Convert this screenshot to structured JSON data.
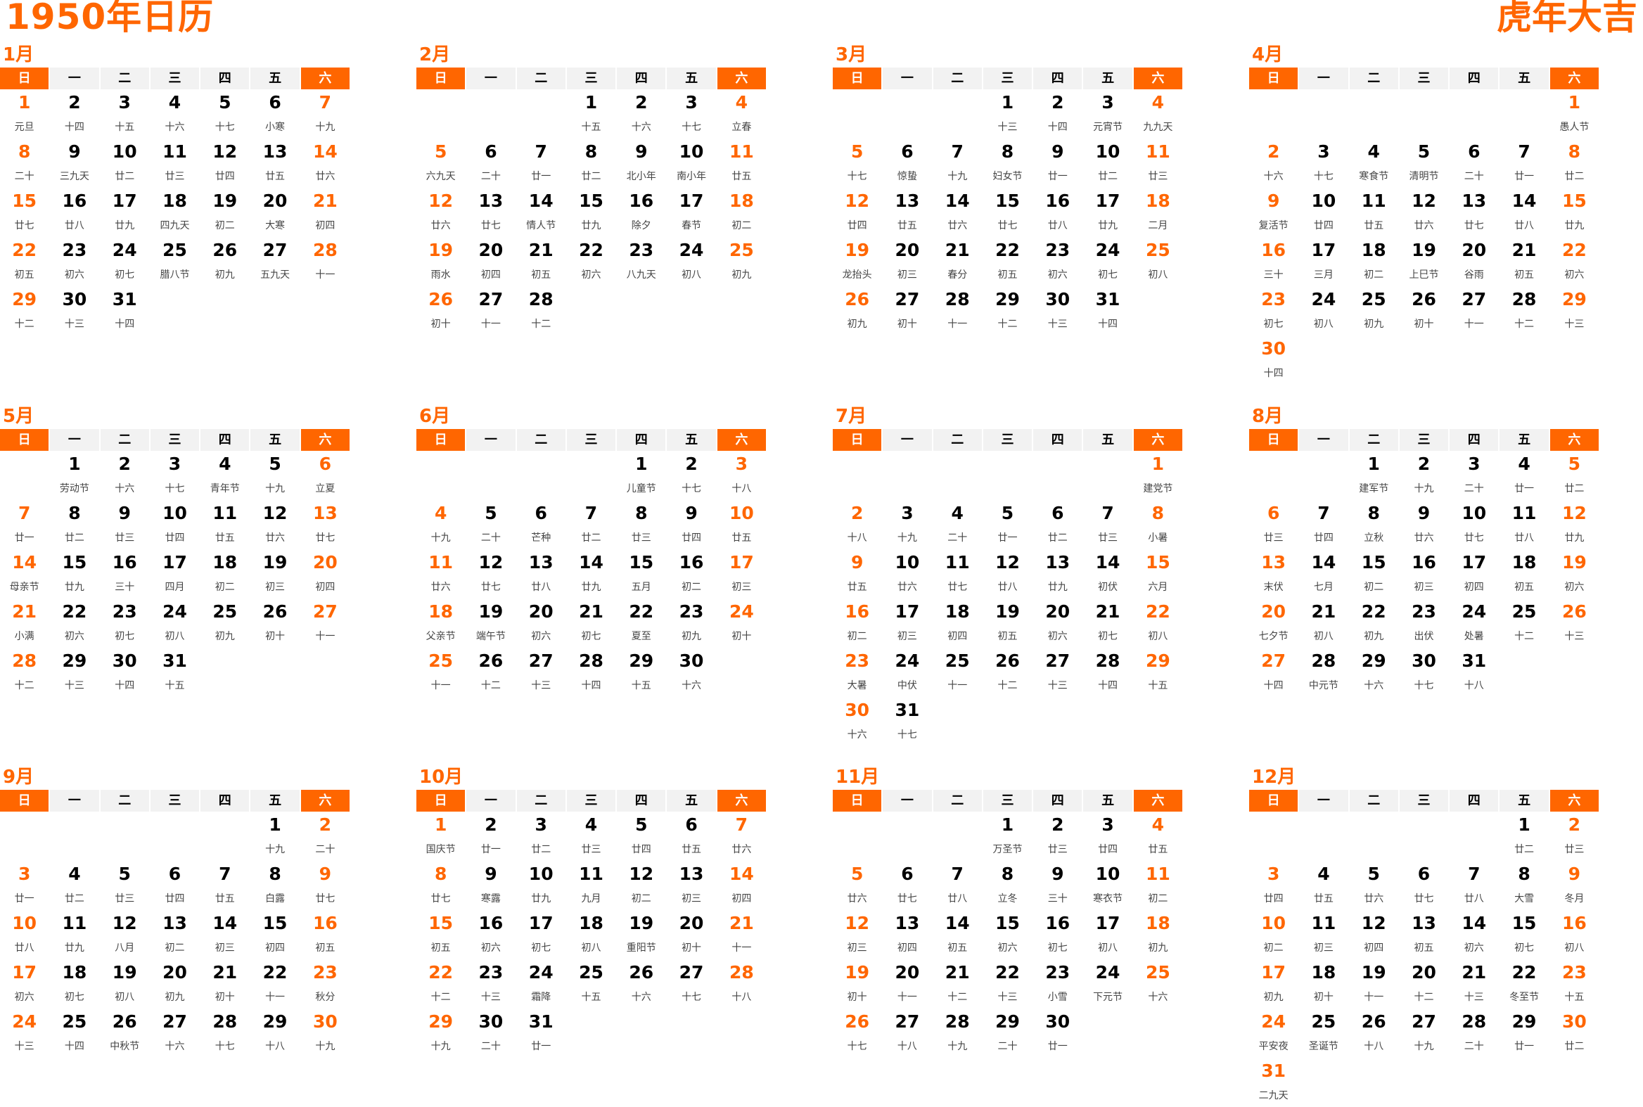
{
  "title": "1950年日历",
  "slogan": "虎年大吉",
  "colors": {
    "accent": "#FF6600",
    "header_bg": "#F2F2F2",
    "text": "#000000",
    "lunar_text": "#444444"
  },
  "weekdays": [
    "日",
    "一",
    "二",
    "三",
    "四",
    "五",
    "六"
  ],
  "months": [
    {
      "label": "1月",
      "days": [
        [
          "1",
          "元旦"
        ],
        [
          "2",
          "十四"
        ],
        [
          "3",
          "十五"
        ],
        [
          "4",
          "十六"
        ],
        [
          "5",
          "十七"
        ],
        [
          "6",
          "小寒"
        ],
        [
          "7",
          "十九"
        ],
        [
          "8",
          "二十"
        ],
        [
          "9",
          "三九天"
        ],
        [
          "10",
          "廿二"
        ],
        [
          "11",
          "廿三"
        ],
        [
          "12",
          "廿四"
        ],
        [
          "13",
          "廿五"
        ],
        [
          "14",
          "廿六"
        ],
        [
          "15",
          "廿七"
        ],
        [
          "16",
          "廿八"
        ],
        [
          "17",
          "廿九"
        ],
        [
          "18",
          "四九天"
        ],
        [
          "19",
          "初二"
        ],
        [
          "20",
          "大寒"
        ],
        [
          "21",
          "初四"
        ],
        [
          "22",
          "初五"
        ],
        [
          "23",
          "初六"
        ],
        [
          "24",
          "初七"
        ],
        [
          "25",
          "腊八节"
        ],
        [
          "26",
          "初九"
        ],
        [
          "27",
          "五九天"
        ],
        [
          "28",
          "十一"
        ],
        [
          "29",
          "十二"
        ],
        [
          "30",
          "十三"
        ],
        [
          "31",
          "十四"
        ]
      ]
    },
    {
      "label": "2月",
      "days": [
        [
          "1",
          "十五"
        ],
        [
          "2",
          "十六"
        ],
        [
          "3",
          "十七"
        ],
        [
          "4",
          "立春"
        ],
        [
          "5",
          "六九天"
        ],
        [
          "6",
          "二十"
        ],
        [
          "7",
          "廿一"
        ],
        [
          "8",
          "廿二"
        ],
        [
          "9",
          "北小年"
        ],
        [
          "10",
          "南小年"
        ],
        [
          "11",
          "廿五"
        ],
        [
          "12",
          "廿六"
        ],
        [
          "13",
          "廿七"
        ],
        [
          "14",
          "情人节"
        ],
        [
          "15",
          "廿九"
        ],
        [
          "16",
          "除夕"
        ],
        [
          "17",
          "春节"
        ],
        [
          "18",
          "初二"
        ],
        [
          "19",
          "雨水"
        ],
        [
          "20",
          "初四"
        ],
        [
          "21",
          "初五"
        ],
        [
          "22",
          "初六"
        ],
        [
          "23",
          "八九天"
        ],
        [
          "24",
          "初八"
        ],
        [
          "25",
          "初九"
        ],
        [
          "26",
          "初十"
        ],
        [
          "27",
          "十一"
        ],
        [
          "28",
          "十二"
        ]
      ]
    },
    {
      "label": "3月",
      "days": [
        [
          "1",
          "十三"
        ],
        [
          "2",
          "十四"
        ],
        [
          "3",
          "元宵节"
        ],
        [
          "4",
          "九九天"
        ],
        [
          "5",
          "十七"
        ],
        [
          "6",
          "惊蛰"
        ],
        [
          "7",
          "十九"
        ],
        [
          "8",
          "妇女节"
        ],
        [
          "9",
          "廿一"
        ],
        [
          "10",
          "廿二"
        ],
        [
          "11",
          "廿三"
        ],
        [
          "12",
          "廿四"
        ],
        [
          "13",
          "廿五"
        ],
        [
          "14",
          "廿六"
        ],
        [
          "15",
          "廿七"
        ],
        [
          "16",
          "廿八"
        ],
        [
          "17",
          "廿九"
        ],
        [
          "18",
          "二月"
        ],
        [
          "19",
          "龙抬头"
        ],
        [
          "20",
          "初三"
        ],
        [
          "21",
          "春分"
        ],
        [
          "22",
          "初五"
        ],
        [
          "23",
          "初六"
        ],
        [
          "24",
          "初七"
        ],
        [
          "25",
          "初八"
        ],
        [
          "26",
          "初九"
        ],
        [
          "27",
          "初十"
        ],
        [
          "28",
          "十一"
        ],
        [
          "29",
          "十二"
        ],
        [
          "30",
          "十三"
        ],
        [
          "31",
          "十四"
        ]
      ]
    },
    {
      "label": "4月",
      "days": [
        [
          "1",
          "愚人节"
        ],
        [
          "2",
          "十六"
        ],
        [
          "3",
          "十七"
        ],
        [
          "4",
          "寒食节"
        ],
        [
          "5",
          "清明节"
        ],
        [
          "6",
          "二十"
        ],
        [
          "7",
          "廿一"
        ],
        [
          "8",
          "廿二"
        ],
        [
          "9",
          "复活节"
        ],
        [
          "10",
          "廿四"
        ],
        [
          "11",
          "廿五"
        ],
        [
          "12",
          "廿六"
        ],
        [
          "13",
          "廿七"
        ],
        [
          "14",
          "廿八"
        ],
        [
          "15",
          "廿九"
        ],
        [
          "16",
          "三十"
        ],
        [
          "17",
          "三月"
        ],
        [
          "18",
          "初二"
        ],
        [
          "19",
          "上巳节"
        ],
        [
          "20",
          "谷雨"
        ],
        [
          "21",
          "初五"
        ],
        [
          "22",
          "初六"
        ],
        [
          "23",
          "初七"
        ],
        [
          "24",
          "初八"
        ],
        [
          "25",
          "初九"
        ],
        [
          "26",
          "初十"
        ],
        [
          "27",
          "十一"
        ],
        [
          "28",
          "十二"
        ],
        [
          "29",
          "十三"
        ],
        [
          "30",
          "十四"
        ]
      ]
    },
    {
      "label": "5月",
      "days": [
        [
          "1",
          "劳动节"
        ],
        [
          "2",
          "十六"
        ],
        [
          "3",
          "十七"
        ],
        [
          "4",
          "青年节"
        ],
        [
          "5",
          "十九"
        ],
        [
          "6",
          "立夏"
        ],
        [
          "7",
          "廿一"
        ],
        [
          "8",
          "廿二"
        ],
        [
          "9",
          "廿三"
        ],
        [
          "10",
          "廿四"
        ],
        [
          "11",
          "廿五"
        ],
        [
          "12",
          "廿六"
        ],
        [
          "13",
          "廿七"
        ],
        [
          "14",
          "母亲节"
        ],
        [
          "15",
          "廿九"
        ],
        [
          "16",
          "三十"
        ],
        [
          "17",
          "四月"
        ],
        [
          "18",
          "初二"
        ],
        [
          "19",
          "初三"
        ],
        [
          "20",
          "初四"
        ],
        [
          "21",
          "小满"
        ],
        [
          "22",
          "初六"
        ],
        [
          "23",
          "初七"
        ],
        [
          "24",
          "初八"
        ],
        [
          "25",
          "初九"
        ],
        [
          "26",
          "初十"
        ],
        [
          "27",
          "十一"
        ],
        [
          "28",
          "十二"
        ],
        [
          "29",
          "十三"
        ],
        [
          "30",
          "十四"
        ],
        [
          "31",
          "十五"
        ]
      ]
    },
    {
      "label": "6月",
      "days": [
        [
          "1",
          "儿童节"
        ],
        [
          "2",
          "十七"
        ],
        [
          "3",
          "十八"
        ],
        [
          "4",
          "十九"
        ],
        [
          "5",
          "二十"
        ],
        [
          "6",
          "芒种"
        ],
        [
          "7",
          "廿二"
        ],
        [
          "8",
          "廿三"
        ],
        [
          "9",
          "廿四"
        ],
        [
          "10",
          "廿五"
        ],
        [
          "11",
          "廿六"
        ],
        [
          "12",
          "廿七"
        ],
        [
          "13",
          "廿八"
        ],
        [
          "14",
          "廿九"
        ],
        [
          "15",
          "五月"
        ],
        [
          "16",
          "初二"
        ],
        [
          "17",
          "初三"
        ],
        [
          "18",
          "父亲节"
        ],
        [
          "19",
          "端午节"
        ],
        [
          "20",
          "初六"
        ],
        [
          "21",
          "初七"
        ],
        [
          "22",
          "夏至"
        ],
        [
          "23",
          "初九"
        ],
        [
          "24",
          "初十"
        ],
        [
          "25",
          "十一"
        ],
        [
          "26",
          "十二"
        ],
        [
          "27",
          "十三"
        ],
        [
          "28",
          "十四"
        ],
        [
          "29",
          "十五"
        ],
        [
          "30",
          "十六"
        ]
      ]
    },
    {
      "label": "7月",
      "days": [
        [
          "1",
          "建党节"
        ],
        [
          "2",
          "十八"
        ],
        [
          "3",
          "十九"
        ],
        [
          "4",
          "二十"
        ],
        [
          "5",
          "廿一"
        ],
        [
          "6",
          "廿二"
        ],
        [
          "7",
          "廿三"
        ],
        [
          "8",
          "小暑"
        ],
        [
          "9",
          "廿五"
        ],
        [
          "10",
          "廿六"
        ],
        [
          "11",
          "廿七"
        ],
        [
          "12",
          "廿八"
        ],
        [
          "13",
          "廿九"
        ],
        [
          "14",
          "初伏"
        ],
        [
          "15",
          "六月"
        ],
        [
          "16",
          "初二"
        ],
        [
          "17",
          "初三"
        ],
        [
          "18",
          "初四"
        ],
        [
          "19",
          "初五"
        ],
        [
          "20",
          "初六"
        ],
        [
          "21",
          "初七"
        ],
        [
          "22",
          "初八"
        ],
        [
          "23",
          "大暑"
        ],
        [
          "24",
          "中伏"
        ],
        [
          "25",
          "十一"
        ],
        [
          "26",
          "十二"
        ],
        [
          "27",
          "十三"
        ],
        [
          "28",
          "十四"
        ],
        [
          "29",
          "十五"
        ],
        [
          "30",
          "十六"
        ],
        [
          "31",
          "十七"
        ]
      ]
    },
    {
      "label": "8月",
      "days": [
        [
          "1",
          "建军节"
        ],
        [
          "2",
          "十九"
        ],
        [
          "3",
          "二十"
        ],
        [
          "4",
          "廿一"
        ],
        [
          "5",
          "廿二"
        ],
        [
          "6",
          "廿三"
        ],
        [
          "7",
          "廿四"
        ],
        [
          "8",
          "立秋"
        ],
        [
          "9",
          "廿六"
        ],
        [
          "10",
          "廿七"
        ],
        [
          "11",
          "廿八"
        ],
        [
          "12",
          "廿九"
        ],
        [
          "13",
          "末伏"
        ],
        [
          "14",
          "七月"
        ],
        [
          "15",
          "初二"
        ],
        [
          "16",
          "初三"
        ],
        [
          "17",
          "初四"
        ],
        [
          "18",
          "初五"
        ],
        [
          "19",
          "初六"
        ],
        [
          "20",
          "七夕节"
        ],
        [
          "21",
          "初八"
        ],
        [
          "22",
          "初九"
        ],
        [
          "23",
          "出伏"
        ],
        [
          "24",
          "处暑"
        ],
        [
          "25",
          "十二"
        ],
        [
          "26",
          "十三"
        ],
        [
          "27",
          "十四"
        ],
        [
          "28",
          "中元节"
        ],
        [
          "29",
          "十六"
        ],
        [
          "30",
          "十七"
        ],
        [
          "31",
          "十八"
        ]
      ]
    },
    {
      "label": "9月",
      "days": [
        [
          "1",
          "十九"
        ],
        [
          "2",
          "二十"
        ],
        [
          "3",
          "廿一"
        ],
        [
          "4",
          "廿二"
        ],
        [
          "5",
          "廿三"
        ],
        [
          "6",
          "廿四"
        ],
        [
          "7",
          "廿五"
        ],
        [
          "8",
          "白露"
        ],
        [
          "9",
          "廿七"
        ],
        [
          "10",
          "廿八"
        ],
        [
          "11",
          "廿九"
        ],
        [
          "12",
          "八月"
        ],
        [
          "13",
          "初二"
        ],
        [
          "14",
          "初三"
        ],
        [
          "15",
          "初四"
        ],
        [
          "16",
          "初五"
        ],
        [
          "17",
          "初六"
        ],
        [
          "18",
          "初七"
        ],
        [
          "19",
          "初八"
        ],
        [
          "20",
          "初九"
        ],
        [
          "21",
          "初十"
        ],
        [
          "22",
          "十一"
        ],
        [
          "23",
          "秋分"
        ],
        [
          "24",
          "十三"
        ],
        [
          "25",
          "十四"
        ],
        [
          "26",
          "中秋节"
        ],
        [
          "27",
          "十六"
        ],
        [
          "28",
          "十七"
        ],
        [
          "29",
          "十八"
        ],
        [
          "30",
          "十九"
        ]
      ]
    },
    {
      "label": "10月",
      "days": [
        [
          "1",
          "国庆节"
        ],
        [
          "2",
          "廿一"
        ],
        [
          "3",
          "廿二"
        ],
        [
          "4",
          "廿三"
        ],
        [
          "5",
          "廿四"
        ],
        [
          "6",
          "廿五"
        ],
        [
          "7",
          "廿六"
        ],
        [
          "8",
          "廿七"
        ],
        [
          "9",
          "寒露"
        ],
        [
          "10",
          "廿九"
        ],
        [
          "11",
          "九月"
        ],
        [
          "12",
          "初二"
        ],
        [
          "13",
          "初三"
        ],
        [
          "14",
          "初四"
        ],
        [
          "15",
          "初五"
        ],
        [
          "16",
          "初六"
        ],
        [
          "17",
          "初七"
        ],
        [
          "18",
          "初八"
        ],
        [
          "19",
          "重阳节"
        ],
        [
          "20",
          "初十"
        ],
        [
          "21",
          "十一"
        ],
        [
          "22",
          "十二"
        ],
        [
          "23",
          "十三"
        ],
        [
          "24",
          "霜降"
        ],
        [
          "25",
          "十五"
        ],
        [
          "26",
          "十六"
        ],
        [
          "27",
          "十七"
        ],
        [
          "28",
          "十八"
        ],
        [
          "29",
          "十九"
        ],
        [
          "30",
          "二十"
        ],
        [
          "31",
          "廿一"
        ]
      ]
    },
    {
      "label": "11月",
      "days": [
        [
          "1",
          "万圣节"
        ],
        [
          "2",
          "廿三"
        ],
        [
          "3",
          "廿四"
        ],
        [
          "4",
          "廿五"
        ],
        [
          "5",
          "廿六"
        ],
        [
          "6",
          "廿七"
        ],
        [
          "7",
          "廿八"
        ],
        [
          "8",
          "立冬"
        ],
        [
          "9",
          "三十"
        ],
        [
          "10",
          "寒衣节"
        ],
        [
          "11",
          "初二"
        ],
        [
          "12",
          "初三"
        ],
        [
          "13",
          "初四"
        ],
        [
          "14",
          "初五"
        ],
        [
          "15",
          "初六"
        ],
        [
          "16",
          "初七"
        ],
        [
          "17",
          "初八"
        ],
        [
          "18",
          "初九"
        ],
        [
          "19",
          "初十"
        ],
        [
          "20",
          "十一"
        ],
        [
          "21",
          "十二"
        ],
        [
          "22",
          "十三"
        ],
        [
          "23",
          "小雪"
        ],
        [
          "24",
          "下元节"
        ],
        [
          "25",
          "十六"
        ],
        [
          "26",
          "十七"
        ],
        [
          "27",
          "十八"
        ],
        [
          "28",
          "十九"
        ],
        [
          "29",
          "二十"
        ],
        [
          "30",
          "廿一"
        ]
      ]
    },
    {
      "label": "12月",
      "days": [
        [
          "1",
          "廿二"
        ],
        [
          "2",
          "廿三"
        ],
        [
          "3",
          "廿四"
        ],
        [
          "4",
          "廿五"
        ],
        [
          "5",
          "廿六"
        ],
        [
          "6",
          "廿七"
        ],
        [
          "7",
          "廿八"
        ],
        [
          "8",
          "大雪"
        ],
        [
          "9",
          "冬月"
        ],
        [
          "10",
          "初二"
        ],
        [
          "11",
          "初三"
        ],
        [
          "12",
          "初四"
        ],
        [
          "13",
          "初五"
        ],
        [
          "14",
          "初六"
        ],
        [
          "15",
          "初七"
        ],
        [
          "16",
          "初八"
        ],
        [
          "17",
          "初九"
        ],
        [
          "18",
          "初十"
        ],
        [
          "19",
          "十一"
        ],
        [
          "20",
          "十二"
        ],
        [
          "21",
          "十三"
        ],
        [
          "22",
          "冬至节"
        ],
        [
          "23",
          "十五"
        ],
        [
          "24",
          "平安夜"
        ],
        [
          "25",
          "圣诞节"
        ],
        [
          "26",
          "十八"
        ],
        [
          "27",
          "十九"
        ],
        [
          "28",
          "二十"
        ],
        [
          "29",
          "廿一"
        ],
        [
          "30",
          "廿二"
        ],
        [
          "31",
          "二九天"
        ]
      ]
    }
  ]
}
